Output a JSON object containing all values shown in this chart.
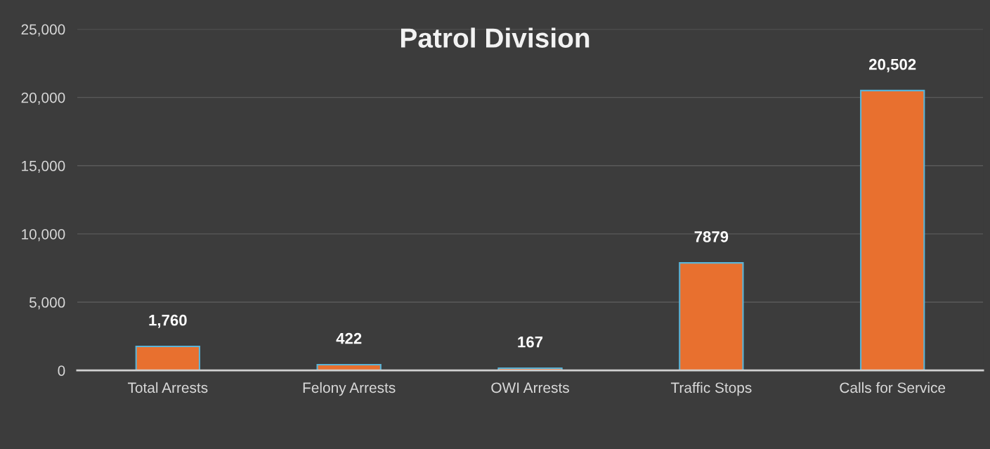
{
  "chart_data": {
    "type": "bar",
    "title": "Patrol Division",
    "categories": [
      "Total Arrests",
      "Felony Arrests",
      "OWI Arrests",
      "Traffic Stops",
      "Calls for Service"
    ],
    "values": [
      1760,
      422,
      167,
      7879,
      20502
    ],
    "value_labels": [
      "1,760",
      "422",
      "167",
      "7879",
      "20,502"
    ],
    "color": "#e8702f",
    "ylim": [
      0,
      25000
    ],
    "yticks": [
      {
        "value": 0,
        "label": "0"
      },
      {
        "value": 5000,
        "label": "5,000"
      },
      {
        "value": 10000,
        "label": "10,000"
      },
      {
        "value": 15000,
        "label": "15,000"
      },
      {
        "value": 20000,
        "label": "20,000"
      },
      {
        "value": 25000,
        "label": "25,000"
      }
    ],
    "grid": "y",
    "legend": false
  }
}
